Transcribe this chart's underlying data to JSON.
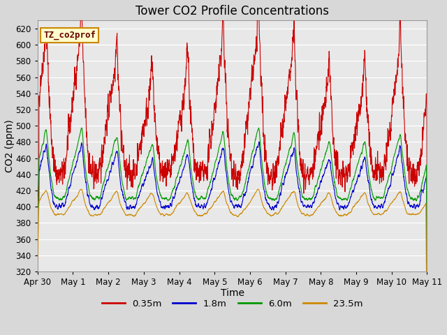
{
  "title": "Tower CO2 Profile Concentrations",
  "xlabel": "Time",
  "ylabel": "CO2 (ppm)",
  "ylim": [
    320,
    630
  ],
  "yticks": [
    320,
    340,
    360,
    380,
    400,
    420,
    440,
    460,
    480,
    500,
    520,
    540,
    560,
    580,
    600,
    620
  ],
  "fig_bg": "#d8d8d8",
  "plot_bg": "#e8e8e8",
  "series_colors": [
    "#cc0000",
    "#0000cc",
    "#009900",
    "#cc8800"
  ],
  "series_labels": [
    "0.35m",
    "1.8m",
    "6.0m",
    "23.5m"
  ],
  "legend_label": "TZ_co2prof",
  "legend_box_color": "#ffffcc",
  "legend_box_edge": "#cc8800",
  "tick_labels": [
    "Apr 30",
    "May 1",
    "May 2",
    "May 3",
    "May 4",
    "May 5",
    "May 6",
    "May 7",
    "May 8",
    "May 9",
    "May 10",
    "May 11"
  ],
  "base_co2": 400,
  "time_step_hours": 0.1
}
